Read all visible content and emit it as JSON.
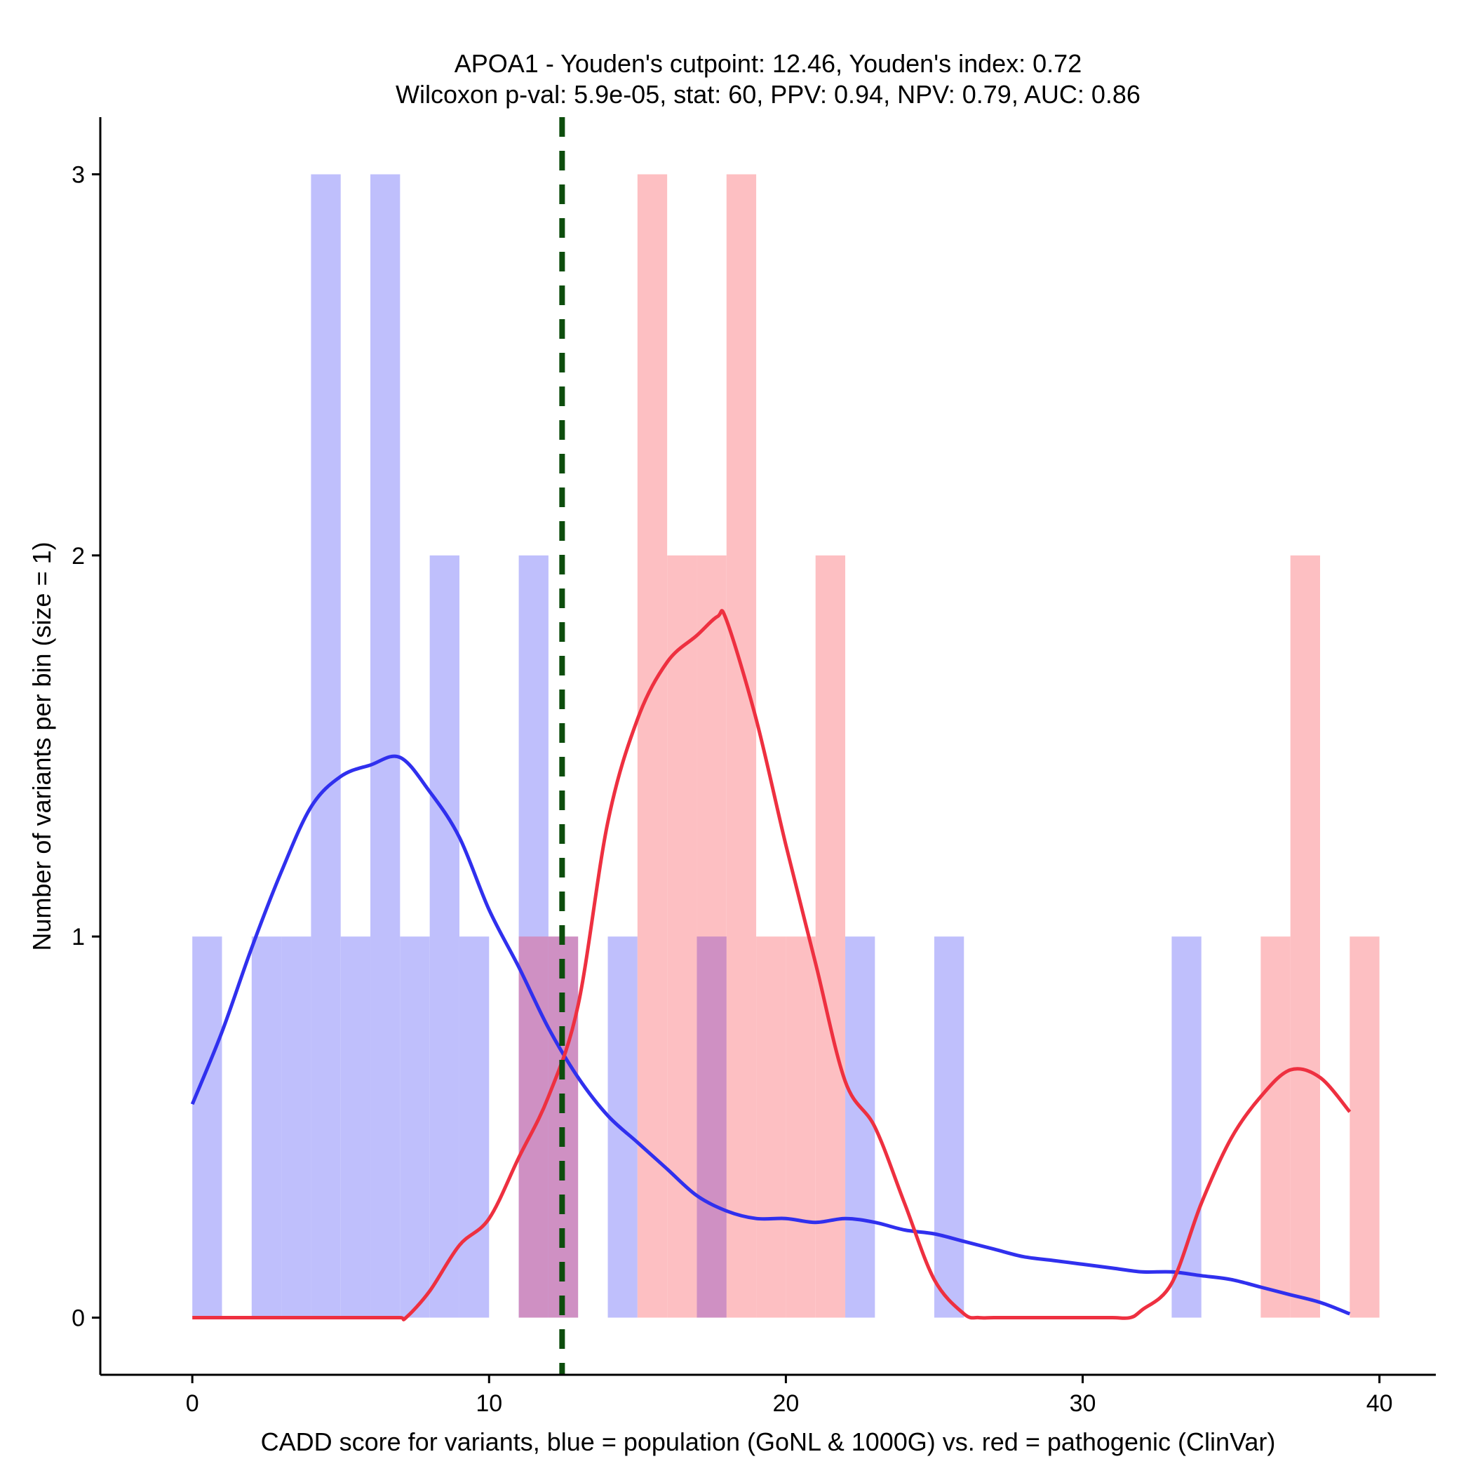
{
  "chart_data": {
    "type": "histogram_with_density",
    "title_line1": "APOA1 - Youden's cutpoint: 12.46, Youden's index: 0.72",
    "title_line2": "Wilcoxon p-val: 5.9e-05, stat: 60, PPV: 0.94, NPV: 0.79, AUC: 0.86",
    "xlabel": "CADD score for variants, blue = population (GoNL & 1000G) vs. red = pathogenic (ClinVar)",
    "ylabel": "Number of variants per bin (size = 1)",
    "xlim": [
      -3.1,
      41.9
    ],
    "ylim": [
      -0.15,
      3.15
    ],
    "x_ticks": [
      0,
      10,
      20,
      30,
      40
    ],
    "y_ticks": [
      0,
      1,
      2,
      3
    ],
    "cutpoint": 12.46,
    "colors": {
      "population_bar": "#bfbffc",
      "pathogenic_bar": "#fdbfc2",
      "overlap_bar": "#cf90c3",
      "population_line": "#3030ee",
      "pathogenic_line": "#ee3040",
      "cutpoint_line": "#0d4d0d"
    },
    "series": [
      {
        "name": "population (GoNL & 1000G)",
        "bins": [
          {
            "x0": 0,
            "x1": 1,
            "count": 1
          },
          {
            "x0": 2,
            "x1": 3,
            "count": 1
          },
          {
            "x0": 3,
            "x1": 4,
            "count": 1
          },
          {
            "x0": 4,
            "x1": 5,
            "count": 3
          },
          {
            "x0": 5,
            "x1": 6,
            "count": 1
          },
          {
            "x0": 6,
            "x1": 7,
            "count": 3
          },
          {
            "x0": 7,
            "x1": 8,
            "count": 1
          },
          {
            "x0": 8,
            "x1": 9,
            "count": 2
          },
          {
            "x0": 9,
            "x1": 10,
            "count": 1
          },
          {
            "x0": 11,
            "x1": 12,
            "count": 2
          },
          {
            "x0": 12,
            "x1": 13,
            "count": 1
          },
          {
            "x0": 14,
            "x1": 15,
            "count": 1
          },
          {
            "x0": 17,
            "x1": 18,
            "count": 1
          },
          {
            "x0": 22,
            "x1": 23,
            "count": 1
          },
          {
            "x0": 25,
            "x1": 26,
            "count": 1
          },
          {
            "x0": 33,
            "x1": 34,
            "count": 1
          }
        ],
        "density_curve": [
          [
            0,
            0.56
          ],
          [
            1,
            0.75
          ],
          [
            2,
            0.97
          ],
          [
            3,
            1.17
          ],
          [
            4,
            1.34
          ],
          [
            5,
            1.42
          ],
          [
            6,
            1.45
          ],
          [
            7,
            1.47
          ],
          [
            8,
            1.38
          ],
          [
            9,
            1.26
          ],
          [
            10,
            1.07
          ],
          [
            11,
            0.92
          ],
          [
            12,
            0.76
          ],
          [
            13,
            0.63
          ],
          [
            14,
            0.53
          ],
          [
            15,
            0.46
          ],
          [
            16,
            0.39
          ],
          [
            17,
            0.32
          ],
          [
            18,
            0.28
          ],
          [
            19,
            0.26
          ],
          [
            20,
            0.26
          ],
          [
            21,
            0.25
          ],
          [
            22,
            0.26
          ],
          [
            23,
            0.25
          ],
          [
            24,
            0.23
          ],
          [
            25,
            0.22
          ],
          [
            26,
            0.2
          ],
          [
            27,
            0.18
          ],
          [
            28,
            0.16
          ],
          [
            29,
            0.15
          ],
          [
            30,
            0.14
          ],
          [
            31,
            0.13
          ],
          [
            32,
            0.12
          ],
          [
            33,
            0.12
          ],
          [
            34,
            0.11
          ],
          [
            35,
            0.1
          ],
          [
            36,
            0.08
          ],
          [
            37,
            0.06
          ],
          [
            38,
            0.04
          ],
          [
            39,
            0.01
          ]
        ]
      },
      {
        "name": "pathogenic (ClinVar)",
        "bins": [
          {
            "x0": 11,
            "x1": 12,
            "count": 1
          },
          {
            "x0": 12,
            "x1": 13,
            "count": 1
          },
          {
            "x0": 15,
            "x1": 16,
            "count": 3
          },
          {
            "x0": 16,
            "x1": 17,
            "count": 2
          },
          {
            "x0": 17,
            "x1": 18,
            "count": 2
          },
          {
            "x0": 18,
            "x1": 19,
            "count": 3
          },
          {
            "x0": 19,
            "x1": 20,
            "count": 1
          },
          {
            "x0": 20,
            "x1": 21,
            "count": 1
          },
          {
            "x0": 21,
            "x1": 22,
            "count": 2
          },
          {
            "x0": 36,
            "x1": 37,
            "count": 1
          },
          {
            "x0": 37,
            "x1": 38,
            "count": 2
          },
          {
            "x0": 39,
            "x1": 40,
            "count": 1
          }
        ],
        "density_curve": [
          [
            0,
            0
          ],
          [
            1,
            0
          ],
          [
            2,
            0
          ],
          [
            3,
            0
          ],
          [
            4,
            0
          ],
          [
            5,
            0
          ],
          [
            6,
            0
          ],
          [
            7,
            0
          ],
          [
            7.2,
            0
          ],
          [
            8,
            0.07
          ],
          [
            9,
            0.19
          ],
          [
            10,
            0.26
          ],
          [
            11,
            0.42
          ],
          [
            12,
            0.58
          ],
          [
            13,
            0.82
          ],
          [
            14,
            1.3
          ],
          [
            15,
            1.57
          ],
          [
            16,
            1.72
          ],
          [
            17,
            1.79
          ],
          [
            17.7,
            1.84
          ],
          [
            18,
            1.83
          ],
          [
            19,
            1.57
          ],
          [
            20,
            1.24
          ],
          [
            21,
            0.93
          ],
          [
            22,
            0.62
          ],
          [
            23,
            0.5
          ],
          [
            24,
            0.3
          ],
          [
            25,
            0.1
          ],
          [
            26,
            0.01
          ],
          [
            26.5,
            0
          ],
          [
            27,
            0
          ],
          [
            28,
            0
          ],
          [
            29,
            0
          ],
          [
            30,
            0
          ],
          [
            31,
            0
          ],
          [
            31.6,
            0
          ],
          [
            32,
            0.02
          ],
          [
            33,
            0.09
          ],
          [
            34,
            0.3
          ],
          [
            35,
            0.47
          ],
          [
            36,
            0.58
          ],
          [
            37,
            0.65
          ],
          [
            38,
            0.63
          ],
          [
            39,
            0.54
          ]
        ]
      }
    ]
  }
}
